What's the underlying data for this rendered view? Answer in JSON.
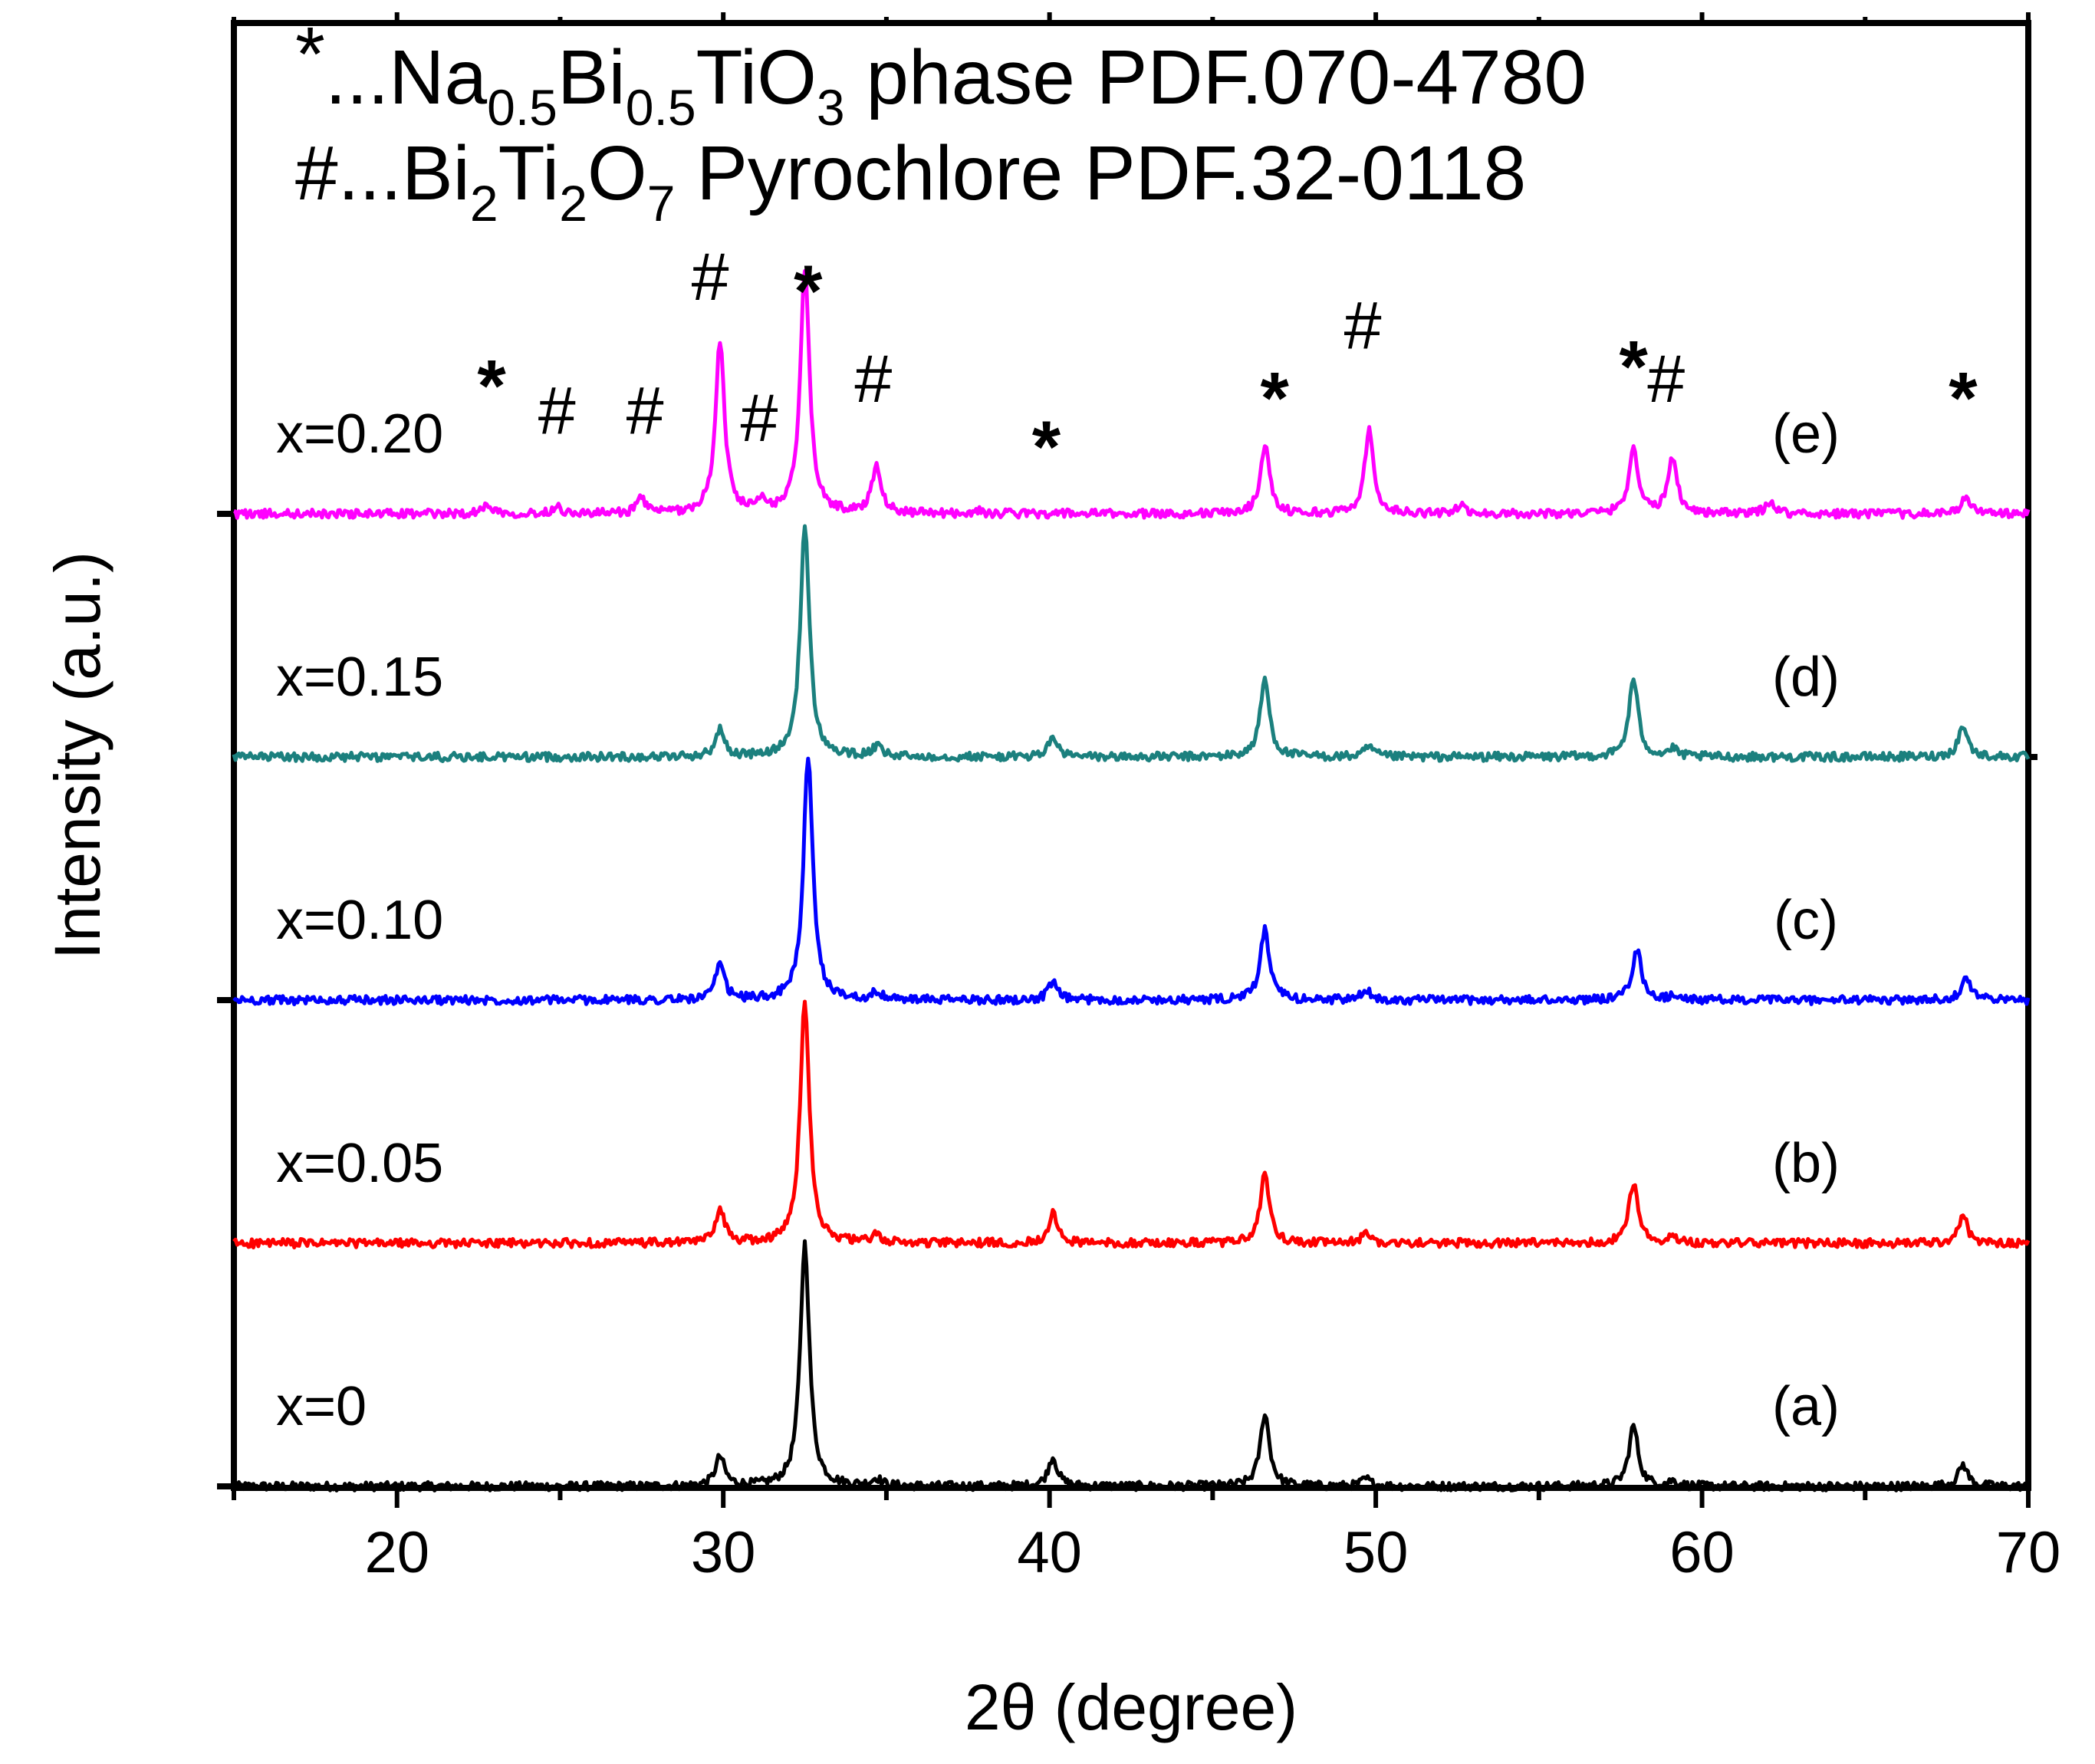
{
  "chart_data": {
    "type": "line",
    "title": "",
    "xlabel": "2θ (degree)",
    "ylabel": "Intensity (a.u.)",
    "xlim": [
      15,
      70
    ],
    "ylim": [
      0,
      5.5
    ],
    "x_ticks": [
      "20",
      "30",
      "40",
      "50",
      "60",
      "70"
    ],
    "x_tick_values": [
      20,
      30,
      40,
      50,
      60,
      70
    ],
    "grid": false,
    "legend_lines": [
      {
        "symbol": "*",
        "text_parts": [
          "...Na",
          "0.5",
          "Bi",
          "0.5",
          "TiO",
          "3",
          " phase PDF.070-4780"
        ]
      },
      {
        "symbol": "#",
        "text_parts": [
          "...Bi",
          "2",
          "Ti",
          "2",
          "O",
          "7",
          " Pyrochlore PDF.32-0118"
        ]
      }
    ],
    "legend_text_line1": "*...Na0.5Bi0.5TiO3 phase PDF.070-4780",
    "legend_text_line2": "#...Bi2Ti2O7 Pyrochlore PDF.32-0118",
    "series": [
      {
        "name": "x=0",
        "tag": "(a)",
        "color": "#000000",
        "offset": 0.0,
        "peaks": [
          [
            29.9,
            0.12
          ],
          [
            32.5,
            1.0
          ],
          [
            34.7,
            0.03
          ],
          [
            40.1,
            0.12
          ],
          [
            46.6,
            0.3
          ],
          [
            49.7,
            0.03
          ],
          [
            57.9,
            0.25
          ],
          [
            59.1,
            0.02
          ],
          [
            68.0,
            0.09
          ]
        ]
      },
      {
        "name": "x=0.05",
        "tag": "(b)",
        "color": "#ff0000",
        "offset": 1.0,
        "peaks": [
          [
            29.9,
            0.14
          ],
          [
            32.5,
            1.0
          ],
          [
            34.7,
            0.03
          ],
          [
            40.1,
            0.12
          ],
          [
            46.6,
            0.28
          ],
          [
            49.7,
            0.04
          ],
          [
            57.9,
            0.25
          ],
          [
            59.1,
            0.03
          ],
          [
            68.0,
            0.11
          ]
        ]
      },
      {
        "name": "x=0.10",
        "tag": "(c)",
        "color": "#0000ff",
        "offset": 2.0,
        "peaks": [
          [
            29.9,
            0.14
          ],
          [
            32.6,
            1.0
          ],
          [
            34.7,
            0.03
          ],
          [
            40.1,
            0.07
          ],
          [
            46.6,
            0.29
          ],
          [
            49.7,
            0.04
          ],
          [
            58.0,
            0.21
          ],
          [
            59.2,
            0.02
          ],
          [
            68.1,
            0.1
          ]
        ]
      },
      {
        "name": "x=0.15",
        "tag": "(d)",
        "color": "#1b807e",
        "offset": 3.0,
        "peaks": [
          [
            29.9,
            0.11
          ],
          [
            32.5,
            0.95
          ],
          [
            34.7,
            0.04
          ],
          [
            40.1,
            0.08
          ],
          [
            46.6,
            0.32
          ],
          [
            49.8,
            0.04
          ],
          [
            57.9,
            0.32
          ],
          [
            59.1,
            0.03
          ],
          [
            68.0,
            0.13
          ]
        ]
      },
      {
        "name": "x=0.20",
        "tag": "(e)",
        "color": "#ff00ff",
        "offset": 4.0,
        "peaks": [
          [
            22.8,
            0.04
          ],
          [
            24.9,
            0.03
          ],
          [
            27.5,
            0.06
          ],
          [
            29.9,
            0.7
          ],
          [
            31.2,
            0.04
          ],
          [
            32.5,
            1.0
          ],
          [
            34.7,
            0.2
          ],
          [
            37.8,
            0.01
          ],
          [
            46.6,
            0.28
          ],
          [
            49.8,
            0.34
          ],
          [
            52.6,
            0.03
          ],
          [
            57.9,
            0.27
          ],
          [
            59.1,
            0.23
          ],
          [
            62.1,
            0.05
          ],
          [
            68.1,
            0.07
          ]
        ]
      }
    ],
    "annotations": [
      {
        "symbol": "*",
        "x": 22.9,
        "y": 4.58
      },
      {
        "symbol": "#",
        "x": 24.9,
        "y": 4.33
      },
      {
        "symbol": "#",
        "x": 27.6,
        "y": 4.33
      },
      {
        "symbol": "#",
        "x": 29.6,
        "y": 4.88
      },
      {
        "symbol": "#",
        "x": 31.1,
        "y": 4.3
      },
      {
        "symbol": "*",
        "x": 32.6,
        "y": 4.97
      },
      {
        "symbol": "#",
        "x": 34.6,
        "y": 4.46
      },
      {
        "symbol": "*",
        "x": 39.9,
        "y": 4.33
      },
      {
        "symbol": "*",
        "x": 46.9,
        "y": 4.53
      },
      {
        "symbol": "#",
        "x": 49.6,
        "y": 4.68
      },
      {
        "symbol": "*",
        "x": 57.9,
        "y": 4.66
      },
      {
        "symbol": "#",
        "x": 58.9,
        "y": 4.46
      },
      {
        "symbol": "*",
        "x": 68.0,
        "y": 4.53
      }
    ]
  }
}
